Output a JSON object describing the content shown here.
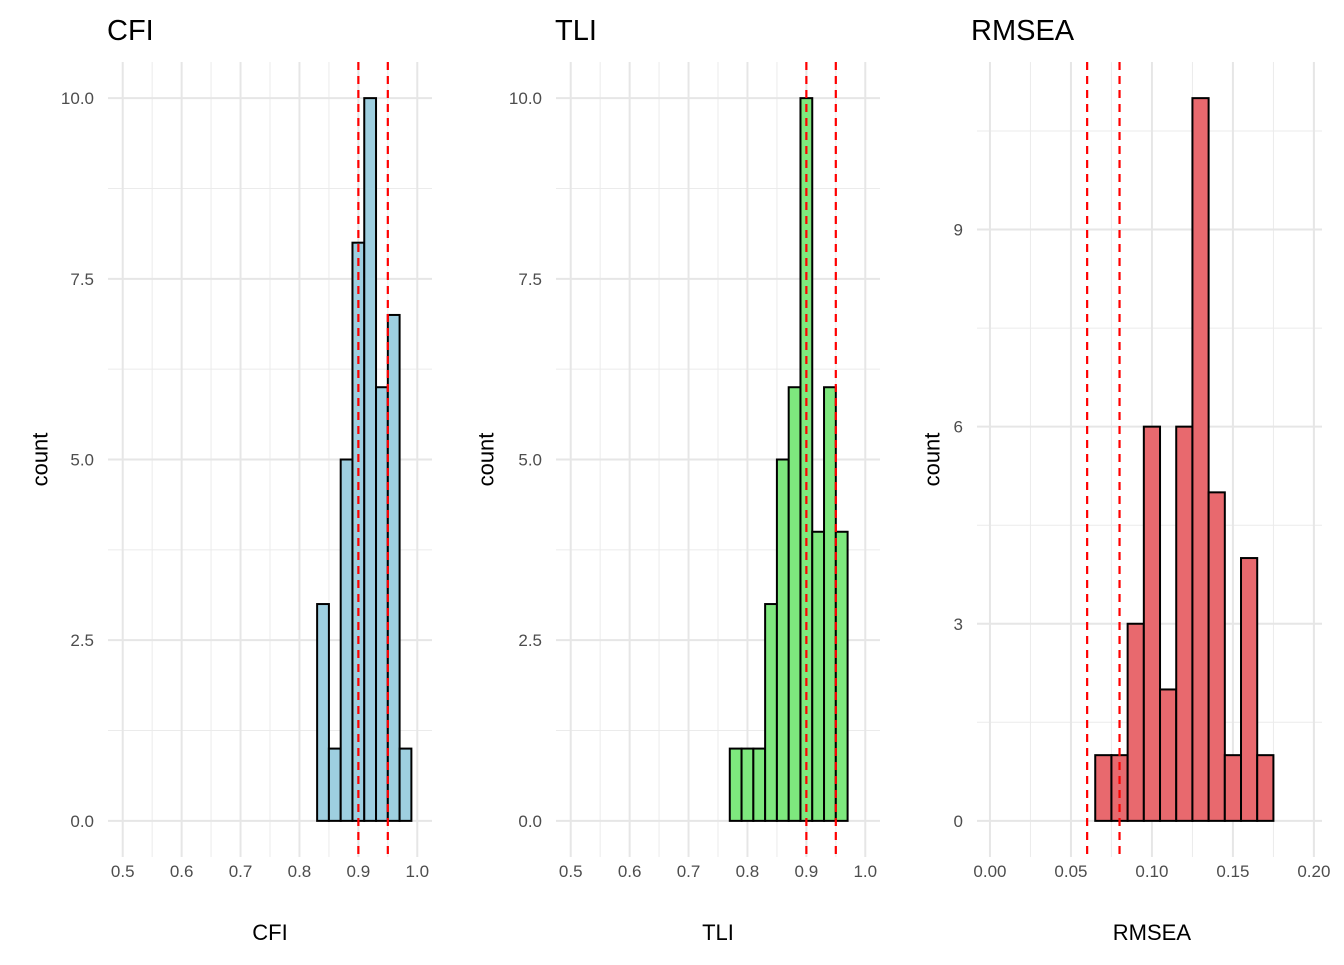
{
  "chart_data": [
    {
      "type": "bar",
      "title": "CFI",
      "xlabel": "CFI",
      "ylabel": "count",
      "fill": "#9ecfe0",
      "xlim": [
        0.475,
        1.025
      ],
      "ylim": [
        -0.5,
        10.5
      ],
      "xticks": [
        0.5,
        0.6,
        0.7,
        0.8,
        0.9,
        1.0
      ],
      "xtick_labels": [
        "0.5",
        "0.6",
        "0.7",
        "0.8",
        "0.9",
        "1.0"
      ],
      "yticks": [
        0,
        2.5,
        5,
        7.5,
        10
      ],
      "ytick_labels": [
        "0.0",
        "2.5",
        "5.0",
        "7.5",
        "10.0"
      ],
      "bin_width": 0.02,
      "bin_starts": [
        0.83,
        0.85,
        0.87,
        0.89,
        0.91,
        0.93,
        0.95,
        0.97
      ],
      "values": [
        3,
        1,
        5,
        8,
        10,
        6,
        7,
        1
      ],
      "reference_lines": [
        0.9,
        0.95
      ],
      "reference_color": "#ff0000"
    },
    {
      "type": "bar",
      "title": "TLI",
      "xlabel": "TLI",
      "ylabel": "count",
      "fill": "#7ee87e",
      "xlim": [
        0.475,
        1.025
      ],
      "ylim": [
        -0.5,
        10.5
      ],
      "xticks": [
        0.5,
        0.6,
        0.7,
        0.8,
        0.9,
        1.0
      ],
      "xtick_labels": [
        "0.5",
        "0.6",
        "0.7",
        "0.8",
        "0.9",
        "1.0"
      ],
      "yticks": [
        0,
        2.5,
        5,
        7.5,
        10
      ],
      "ytick_labels": [
        "0.0",
        "2.5",
        "5.0",
        "7.5",
        "10.0"
      ],
      "bin_width": 0.02,
      "bin_starts": [
        0.77,
        0.79,
        0.81,
        0.83,
        0.85,
        0.87,
        0.89,
        0.91,
        0.93,
        0.95
      ],
      "values": [
        1,
        1,
        1,
        3,
        5,
        6,
        10,
        4,
        6,
        4
      ],
      "reference_lines": [
        0.9,
        0.95
      ],
      "reference_color": "#ff0000"
    },
    {
      "type": "bar",
      "title": "RMSEA",
      "xlabel": "RMSEA",
      "ylabel": "count",
      "fill": "#e8696e",
      "xlim": [
        -0.008,
        0.205
      ],
      "ylim": [
        -0.55,
        11.55
      ],
      "xticks": [
        0.0,
        0.05,
        0.1,
        0.15,
        0.2
      ],
      "xtick_labels": [
        "0.00",
        "0.05",
        "0.10",
        "0.15",
        "0.20"
      ],
      "yticks": [
        0,
        3,
        6,
        9
      ],
      "ytick_labels": [
        "0",
        "3",
        "6",
        "9"
      ],
      "bin_width": 0.01,
      "bin_starts": [
        0.055,
        0.065,
        0.075,
        0.085,
        0.095,
        0.105,
        0.115,
        0.125,
        0.135,
        0.145,
        0.155,
        0.165
      ],
      "values": [
        0,
        1,
        1,
        3,
        6,
        2,
        6,
        11,
        5,
        1,
        4,
        1
      ],
      "reference_lines": [
        0.06,
        0.08
      ],
      "reference_color": "#ff0000"
    }
  ]
}
